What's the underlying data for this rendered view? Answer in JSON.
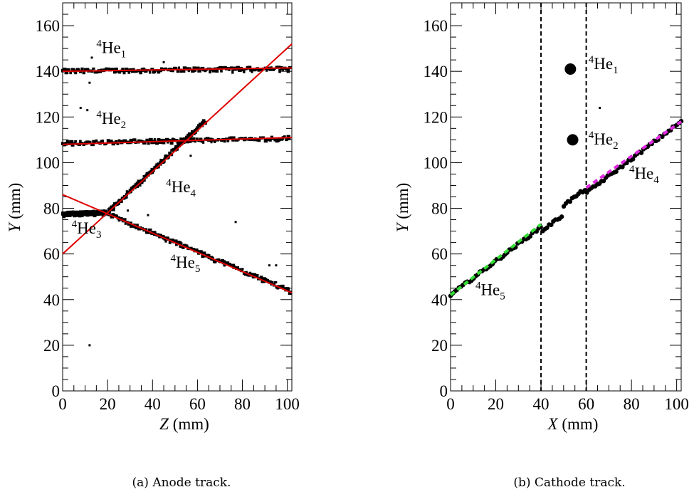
{
  "captions": {
    "a": "(a)  Anode track.",
    "b": "(b)  Cathode track."
  },
  "chart_data": [
    {
      "type": "scatter",
      "panel": "a",
      "xlabel_italic": "Z",
      "xlabel_unit": "(mm)",
      "ylabel_italic": "Y",
      "ylabel_unit": "(mm)",
      "xlim": [
        0,
        102
      ],
      "ylim": [
        0,
        170
      ],
      "xticks": [
        "0",
        "20",
        "40",
        "60",
        "80",
        "100"
      ],
      "yticks": [
        "0",
        "20",
        "40",
        "60",
        "80",
        "100",
        "120",
        "140",
        "160"
      ],
      "fit_color": "#e00000",
      "point_color": "#000000",
      "tracks": [
        {
          "label": "4He1",
          "sup": "4",
          "base": "He",
          "sub": "1",
          "label_pos": [
            15,
            148
          ],
          "x": [
            0,
            102
          ],
          "y": [
            140,
            141.5
          ]
        },
        {
          "label": "4He2",
          "sup": "4",
          "base": "He",
          "sub": "2",
          "label_pos": [
            15,
            117
          ],
          "x": [
            0,
            102
          ],
          "y": [
            108,
            111
          ]
        },
        {
          "label": "4He3",
          "sup": "4",
          "base": "He",
          "sub": "3",
          "label_pos": [
            4,
            69
          ],
          "x": [
            0,
            20
          ],
          "y": [
            77.5,
            78
          ]
        },
        {
          "label": "4He4",
          "sup": "4",
          "base": "He",
          "sub": "4",
          "label_pos": [
            46,
            87
          ],
          "x": [
            0,
            102
          ],
          "y": [
            60,
            152
          ]
        },
        {
          "label": "4He5",
          "sup": "4",
          "base": "He",
          "sub": "5",
          "label_pos": [
            48,
            54
          ],
          "x": [
            0,
            102
          ],
          "y": [
            86,
            43
          ]
        }
      ],
      "scatter_segments": [
        {
          "x": [
            0,
            101
          ],
          "y": [
            140.2,
            141.2
          ]
        },
        {
          "x": [
            0,
            101
          ],
          "y": [
            108.5,
            110.8
          ]
        },
        {
          "x": [
            0,
            19
          ],
          "y": [
            77.5,
            78.2
          ]
        },
        {
          "x": [
            19,
            63
          ],
          "y": [
            77.5,
            118
          ]
        },
        {
          "x": [
            20,
            101
          ],
          "y": [
            77.5,
            44
          ]
        }
      ],
      "stray_points": [
        [
          13,
          146
        ],
        [
          45,
          144
        ],
        [
          12,
          135
        ],
        [
          8,
          124
        ],
        [
          11,
          123
        ],
        [
          12,
          20
        ],
        [
          17,
          78
        ],
        [
          29,
          79
        ],
        [
          57,
          103
        ],
        [
          38,
          77
        ],
        [
          77,
          74
        ],
        [
          92,
          55
        ],
        [
          95,
          55
        ],
        [
          92,
          48
        ]
      ]
    },
    {
      "type": "scatter",
      "panel": "b",
      "xlabel_italic": "X",
      "xlabel_unit": "(mm)",
      "ylabel_italic": "Y",
      "ylabel_unit": "(mm)",
      "xlim": [
        0,
        102
      ],
      "ylim": [
        0,
        170
      ],
      "xticks": [
        "0",
        "20",
        "40",
        "60",
        "80",
        "100"
      ],
      "yticks": [
        "0",
        "20",
        "40",
        "60",
        "80",
        "100",
        "120",
        "140",
        "160"
      ],
      "vertical_dashed_lines": [
        40,
        60
      ],
      "big_points": [
        {
          "label": "4He1",
          "x": 53,
          "y": 141
        },
        {
          "label": "4He2",
          "x": 54,
          "y": 110
        }
      ],
      "stray_points": [
        [
          66,
          124
        ]
      ],
      "main_track": {
        "x": [
          0,
          102
        ],
        "y": [
          42,
          118
        ]
      },
      "fit_segments": [
        {
          "label": "4He5",
          "color": "#33dd33",
          "x": [
            0,
            40
          ],
          "y": [
            42,
            73
          ]
        },
        {
          "label": "4He4",
          "color": "#e028e0",
          "x": [
            60,
            102
          ],
          "y": [
            89,
            118
          ]
        }
      ],
      "labels": [
        {
          "sup": "4",
          "base": "He",
          "sub": "1",
          "pos": [
            61,
            141
          ]
        },
        {
          "sup": "4",
          "base": "He",
          "sub": "2",
          "pos": [
            61,
            108
          ]
        },
        {
          "sup": "4",
          "base": "He",
          "sub": "4",
          "pos": [
            79,
            93
          ]
        },
        {
          "sup": "4",
          "base": "He",
          "sub": "5",
          "pos": [
            11,
            42
          ]
        }
      ]
    }
  ]
}
